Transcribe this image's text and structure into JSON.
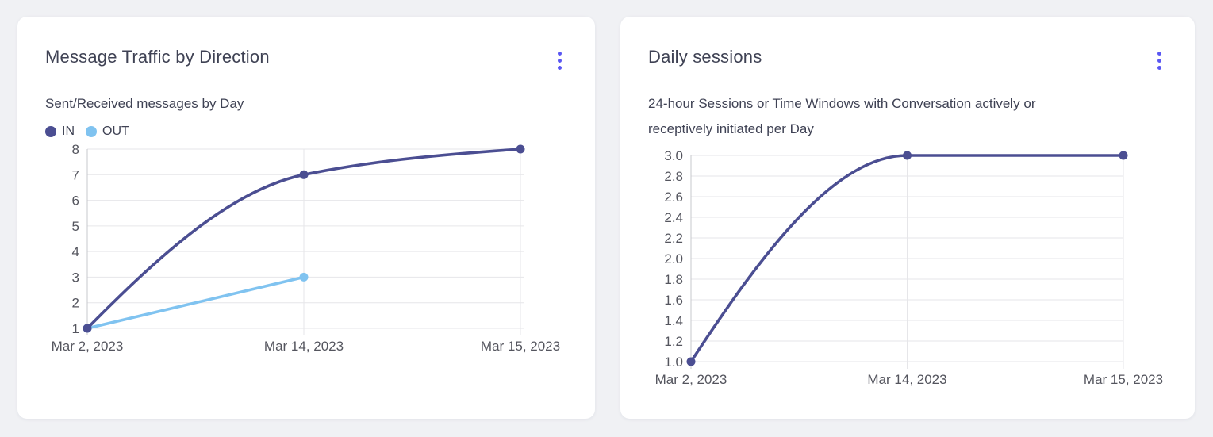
{
  "colors": {
    "page_background": "#f0f1f4",
    "card_background": "#ffffff",
    "title_text": "#3f4254",
    "tick_text": "#54555e",
    "gridline": "#e6e6e9",
    "axis_line": "#c7c8cd",
    "menu_accent": "#5a57f3",
    "series_in": "#4b4e92",
    "series_out": "#80c3f0"
  },
  "cards": [
    {
      "title": "Message Traffic by Direction",
      "subtitle": "Sent/Received messages by Day",
      "menu_icon": "kebab-vertical"
    },
    {
      "title": "Daily sessions",
      "subtitle": "24-hour Sessions or Time Windows with Conversation actively or receptively initiated per Day",
      "menu_icon": "kebab-vertical"
    }
  ],
  "chart_data": [
    {
      "type": "line",
      "title": "Message Traffic by Direction",
      "subtitle": "Sent/Received messages by Day",
      "categories": [
        "Mar 2, 2023",
        "Mar 14, 2023",
        "Mar 15, 2023"
      ],
      "series": [
        {
          "name": "IN",
          "color": "#4b4e92",
          "values": [
            1,
            7,
            8
          ]
        },
        {
          "name": "OUT",
          "color": "#80c3f0",
          "values": [
            1,
            3,
            null
          ]
        }
      ],
      "ylim": [
        1,
        8
      ],
      "yticks": [
        1,
        2,
        3,
        4,
        5,
        6,
        7,
        8
      ],
      "ytick_decimals": 0,
      "grid": true,
      "smooth": true,
      "legend_position": "top-left"
    },
    {
      "type": "line",
      "title": "Daily sessions",
      "subtitle": "24-hour Sessions or Time Windows with Conversation actively or receptively initiated per Day",
      "categories": [
        "Mar 2, 2023",
        "Mar 14, 2023",
        "Mar 15, 2023"
      ],
      "series": [
        {
          "name": "Daily sessions",
          "color": "#4b4e92",
          "values": [
            1.0,
            3.0,
            3.0
          ]
        }
      ],
      "ylim": [
        1,
        3
      ],
      "yticks": [
        1.0,
        1.2,
        1.4,
        1.6,
        1.8,
        2.0,
        2.2,
        2.4,
        2.6,
        2.8,
        3.0
      ],
      "ytick_decimals": 1,
      "grid": true,
      "smooth": true,
      "legend_position": "none"
    }
  ]
}
